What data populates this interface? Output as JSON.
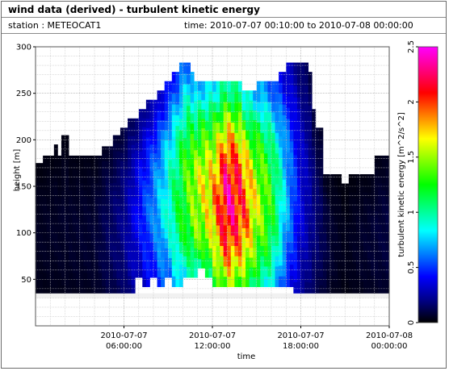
{
  "header": {
    "title": "wind data (derived) - turbulent kinetic energy",
    "station": "station : METEOCAT1",
    "time_range": "time: 2010-07-07 00:10:00 to 2010-07-08 00:00:00"
  },
  "chart_data": {
    "type": "heatmap",
    "title": "wind data (derived) - turbulent kinetic energy",
    "xlabel": "time",
    "ylabel": "height [m]",
    "x_ticks": [
      {
        "hour": 6,
        "label_date": "2010-07-07",
        "label_time": "06:00:00"
      },
      {
        "hour": 12,
        "label_date": "2010-07-07",
        "label_time": "12:00:00"
      },
      {
        "hour": 18,
        "label_date": "2010-07-07",
        "label_time": "18:00:00"
      },
      {
        "hour": 24,
        "label_date": "2010-07-08",
        "label_time": "00:00:00"
      }
    ],
    "xlim_hours": [
      0,
      24
    ],
    "ylim": [
      0,
      300
    ],
    "y_ticks": [
      50,
      100,
      150,
      200,
      250,
      300
    ],
    "grid": true,
    "colorbar": {
      "label": "turbulent kinetic energy [m^2/s^2]",
      "range": [
        0,
        2.5
      ],
      "ticks": [
        "0",
        "0.5",
        "1",
        "1.5",
        "2",
        "2.5"
      ],
      "colormap": [
        "#000000",
        "#00008a",
        "#0000ff",
        "#0080ff",
        "#00ffff",
        "#00ff80",
        "#00ff00",
        "#80ff00",
        "#ffff00",
        "#ff8000",
        "#ff0000",
        "#ff0080",
        "#ff00ff"
      ]
    },
    "top_height_by_hour": [
      [
        0.0,
        175
      ],
      [
        0.5,
        183
      ],
      [
        1.0,
        183
      ],
      [
        1.3,
        195
      ],
      [
        1.5,
        183
      ],
      [
        1.7,
        205
      ],
      [
        2.2,
        183
      ],
      [
        4.4,
        193
      ],
      [
        5.2,
        205
      ],
      [
        5.8,
        213
      ],
      [
        6.3,
        223
      ],
      [
        7.0,
        233
      ],
      [
        7.6,
        243
      ],
      [
        8.2,
        253
      ],
      [
        8.7,
        263
      ],
      [
        9.2,
        273
      ],
      [
        9.7,
        283
      ],
      [
        10.4,
        273
      ],
      [
        10.8,
        263
      ],
      [
        12.2,
        263
      ],
      [
        13.2,
        263
      ],
      [
        14.1,
        253
      ],
      [
        15.1,
        263
      ],
      [
        16.1,
        263
      ],
      [
        16.6,
        273
      ],
      [
        17.1,
        283
      ],
      [
        18.4,
        273
      ],
      [
        18.7,
        233
      ],
      [
        19.1,
        213
      ],
      [
        19.6,
        163
      ],
      [
        20.7,
        153
      ],
      [
        21.2,
        163
      ],
      [
        22.7,
        163
      ],
      [
        22.9,
        183
      ],
      [
        24.0,
        195
      ]
    ],
    "bottom_height_by_hour": [
      [
        0.0,
        35
      ],
      [
        6.2,
        35
      ],
      [
        6.8,
        52
      ],
      [
        7.2,
        42
      ],
      [
        7.8,
        52
      ],
      [
        8.3,
        42
      ],
      [
        8.7,
        52
      ],
      [
        9.2,
        42
      ],
      [
        10.0,
        52
      ],
      [
        10.9,
        62
      ],
      [
        11.5,
        52
      ],
      [
        11.9,
        42
      ],
      [
        17.2,
        42
      ],
      [
        17.6,
        35
      ],
      [
        24.0,
        35
      ]
    ],
    "tke_by_hour": [
      [
        0.0,
        0.04
      ],
      [
        4.0,
        0.06
      ],
      [
        6.0,
        0.18
      ],
      [
        7.0,
        0.35
      ],
      [
        8.0,
        0.52
      ],
      [
        9.0,
        0.75
      ],
      [
        10.0,
        1.05
      ],
      [
        11.0,
        1.3
      ],
      [
        12.0,
        1.45
      ],
      [
        13.0,
        1.9
      ],
      [
        14.0,
        1.7
      ],
      [
        15.0,
        1.3
      ],
      [
        16.0,
        1.05
      ],
      [
        17.0,
        0.6
      ],
      [
        18.0,
        0.3
      ],
      [
        19.0,
        0.15
      ],
      [
        20.0,
        0.06
      ],
      [
        21.0,
        0.03
      ],
      [
        22.0,
        0.05
      ],
      [
        24.0,
        0.08
      ]
    ]
  }
}
